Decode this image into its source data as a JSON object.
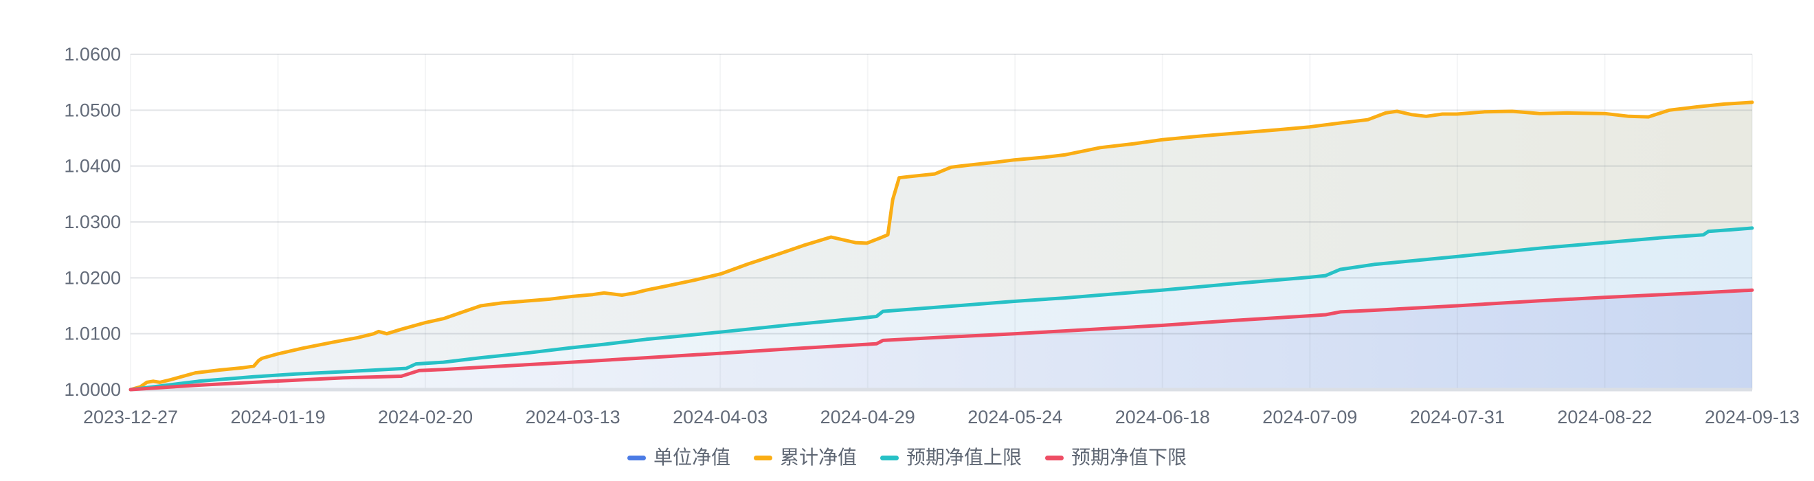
{
  "chart_data": {
    "type": "line",
    "title": "",
    "xlabel": "",
    "ylabel": "",
    "grid": true,
    "legend_position": "bottom",
    "ylim": [
      1.0,
      1.06
    ],
    "y_tick_labels": [
      "1.0000",
      "1.0100",
      "1.0200",
      "1.0300",
      "1.0400",
      "1.0500",
      "1.0600"
    ],
    "x_tick_labels": [
      "2023-12-27",
      "2024-01-19",
      "2024-02-20",
      "2024-03-13",
      "2024-04-03",
      "2024-04-29",
      "2024-05-24",
      "2024-06-18",
      "2024-07-09",
      "2024-07-31",
      "2024-08-22",
      "2024-09-13"
    ],
    "series": [
      {
        "name": "单位净值",
        "key": "unit-nav",
        "color": "#4B7BE5",
        "hidden_under_axis": true,
        "points": [
          [
            0,
            1.0
          ],
          [
            1,
            1.0
          ]
        ]
      },
      {
        "name": "累计净值",
        "key": "cumulative-nav",
        "color": "#FAAD14",
        "area_stops": [
          "#EFF3F7",
          "#ECEFEE",
          "#E9EAE2"
        ],
        "points": [
          [
            0,
            1.0
          ],
          [
            0.006,
            1.0005
          ],
          [
            0.01,
            1.0013
          ],
          [
            0.014,
            1.0015
          ],
          [
            0.018,
            1.0013
          ],
          [
            0.025,
            1.0018
          ],
          [
            0.04,
            1.003
          ],
          [
            0.055,
            1.0035
          ],
          [
            0.069,
            1.0039
          ],
          [
            0.076,
            1.0042
          ],
          [
            0.079,
            1.0052
          ],
          [
            0.081,
            1.0056
          ],
          [
            0.091,
            1.0064
          ],
          [
            0.106,
            1.0074
          ],
          [
            0.125,
            1.0085
          ],
          [
            0.14,
            1.0093
          ],
          [
            0.15,
            1.01
          ],
          [
            0.153,
            1.0104
          ],
          [
            0.158,
            1.01
          ],
          [
            0.167,
            1.0108
          ],
          [
            0.182,
            1.012
          ],
          [
            0.193,
            1.0127
          ],
          [
            0.204,
            1.0138
          ],
          [
            0.216,
            1.015
          ],
          [
            0.229,
            1.0155
          ],
          [
            0.242,
            1.0158
          ],
          [
            0.259,
            1.0162
          ],
          [
            0.273,
            1.0167
          ],
          [
            0.285,
            1.017
          ],
          [
            0.292,
            1.0173
          ],
          [
            0.303,
            1.0169
          ],
          [
            0.311,
            1.0173
          ],
          [
            0.318,
            1.0178
          ],
          [
            0.33,
            1.0185
          ],
          [
            0.348,
            1.0196
          ],
          [
            0.364,
            1.0207
          ],
          [
            0.381,
            1.0225
          ],
          [
            0.4,
            1.0243
          ],
          [
            0.415,
            1.0258
          ],
          [
            0.432,
            1.0273
          ],
          [
            0.447,
            1.0263
          ],
          [
            0.454,
            1.0262
          ],
          [
            0.462,
            1.0271
          ],
          [
            0.467,
            1.0277
          ],
          [
            0.47,
            1.034
          ],
          [
            0.474,
            1.0379
          ],
          [
            0.483,
            1.0382
          ],
          [
            0.496,
            1.0386
          ],
          [
            0.506,
            1.0398
          ],
          [
            0.521,
            1.0403
          ],
          [
            0.534,
            1.0407
          ],
          [
            0.545,
            1.0411
          ],
          [
            0.564,
            1.0416
          ],
          [
            0.576,
            1.042
          ],
          [
            0.598,
            1.0433
          ],
          [
            0.619,
            1.044
          ],
          [
            0.636,
            1.0447
          ],
          [
            0.657,
            1.0453
          ],
          [
            0.682,
            1.0459
          ],
          [
            0.708,
            1.0465
          ],
          [
            0.727,
            1.047
          ],
          [
            0.746,
            1.0477
          ],
          [
            0.763,
            1.0483
          ],
          [
            0.774,
            1.0495
          ],
          [
            0.781,
            1.0498
          ],
          [
            0.79,
            1.0492
          ],
          [
            0.799,
            1.0489
          ],
          [
            0.809,
            1.0493
          ],
          [
            0.818,
            1.0493
          ],
          [
            0.835,
            1.0497
          ],
          [
            0.852,
            1.0498
          ],
          [
            0.869,
            1.0494
          ],
          [
            0.886,
            1.0495
          ],
          [
            0.909,
            1.0494
          ],
          [
            0.924,
            1.0489
          ],
          [
            0.936,
            1.0488
          ],
          [
            0.949,
            1.05
          ],
          [
            0.966,
            1.0506
          ],
          [
            0.983,
            1.0511
          ],
          [
            1.0,
            1.0514
          ]
        ]
      },
      {
        "name": "预期净值上限",
        "key": "expected-nav-upper",
        "color": "#27C1C6",
        "area_stops": [
          "#F3F7FA",
          "#E9F2F9",
          "#DFEDF8"
        ],
        "points": [
          [
            0,
            1.0
          ],
          [
            0.017,
            1.0006
          ],
          [
            0.042,
            1.0015
          ],
          [
            0.076,
            1.0023
          ],
          [
            0.102,
            1.0028
          ],
          [
            0.131,
            1.0032
          ],
          [
            0.157,
            1.0036
          ],
          [
            0.17,
            1.0038
          ],
          [
            0.176,
            1.0046
          ],
          [
            0.193,
            1.0049
          ],
          [
            0.216,
            1.0057
          ],
          [
            0.246,
            1.0066
          ],
          [
            0.272,
            1.0075
          ],
          [
            0.292,
            1.0081
          ],
          [
            0.318,
            1.009
          ],
          [
            0.34,
            1.0096
          ],
          [
            0.364,
            1.0103
          ],
          [
            0.407,
            1.0116
          ],
          [
            0.454,
            1.0129
          ],
          [
            0.46,
            1.0131
          ],
          [
            0.464,
            1.014
          ],
          [
            0.496,
            1.0147
          ],
          [
            0.545,
            1.0158
          ],
          [
            0.576,
            1.0164
          ],
          [
            0.606,
            1.0171
          ],
          [
            0.636,
            1.0178
          ],
          [
            0.682,
            1.019
          ],
          [
            0.727,
            1.0201
          ],
          [
            0.737,
            1.0204
          ],
          [
            0.746,
            1.0215
          ],
          [
            0.767,
            1.0224
          ],
          [
            0.818,
            1.0238
          ],
          [
            0.869,
            1.0253
          ],
          [
            0.909,
            1.0263
          ],
          [
            0.945,
            1.0272
          ],
          [
            0.97,
            1.0277
          ],
          [
            0.973,
            1.0283
          ],
          [
            0.987,
            1.0286
          ],
          [
            1.0,
            1.0289
          ]
        ]
      },
      {
        "name": "预期净值下限",
        "key": "expected-nav-lower",
        "color": "#EE4D64",
        "area_stops": [
          "#F6F9FC",
          "#E2E9F7",
          "#C9D7F2"
        ],
        "points": [
          [
            0,
            1.0
          ],
          [
            0.042,
            1.0008
          ],
          [
            0.089,
            1.0015
          ],
          [
            0.131,
            1.0021
          ],
          [
            0.167,
            1.0024
          ],
          [
            0.178,
            1.0034
          ],
          [
            0.193,
            1.0036
          ],
          [
            0.216,
            1.004
          ],
          [
            0.272,
            1.0049
          ],
          [
            0.318,
            1.0057
          ],
          [
            0.364,
            1.0065
          ],
          [
            0.407,
            1.0073
          ],
          [
            0.454,
            1.0081
          ],
          [
            0.46,
            1.0082
          ],
          [
            0.464,
            1.0088
          ],
          [
            0.496,
            1.0093
          ],
          [
            0.545,
            1.01
          ],
          [
            0.576,
            1.0105
          ],
          [
            0.636,
            1.0115
          ],
          [
            0.682,
            1.0124
          ],
          [
            0.727,
            1.0132
          ],
          [
            0.737,
            1.0134
          ],
          [
            0.746,
            1.0139
          ],
          [
            0.767,
            1.0142
          ],
          [
            0.818,
            1.015
          ],
          [
            0.869,
            1.0159
          ],
          [
            0.909,
            1.0165
          ],
          [
            0.945,
            1.017
          ],
          [
            0.973,
            1.0174
          ],
          [
            1.0,
            1.0178
          ]
        ]
      }
    ],
    "colors": {
      "background": "#FFFFFF",
      "axis_label": "#636B79",
      "legend_text": "#5E6673",
      "grid_line": "#E8EAEE",
      "axis_line": "#DBDFE5"
    }
  },
  "legend": {
    "items": [
      {
        "label": "单位净值",
        "color": "#4B7BE5"
      },
      {
        "label": "累计净值",
        "color": "#FAAD14"
      },
      {
        "label": "预期净值上限",
        "color": "#27C1C6"
      },
      {
        "label": "预期净值下限",
        "color": "#EE4D64"
      }
    ]
  }
}
